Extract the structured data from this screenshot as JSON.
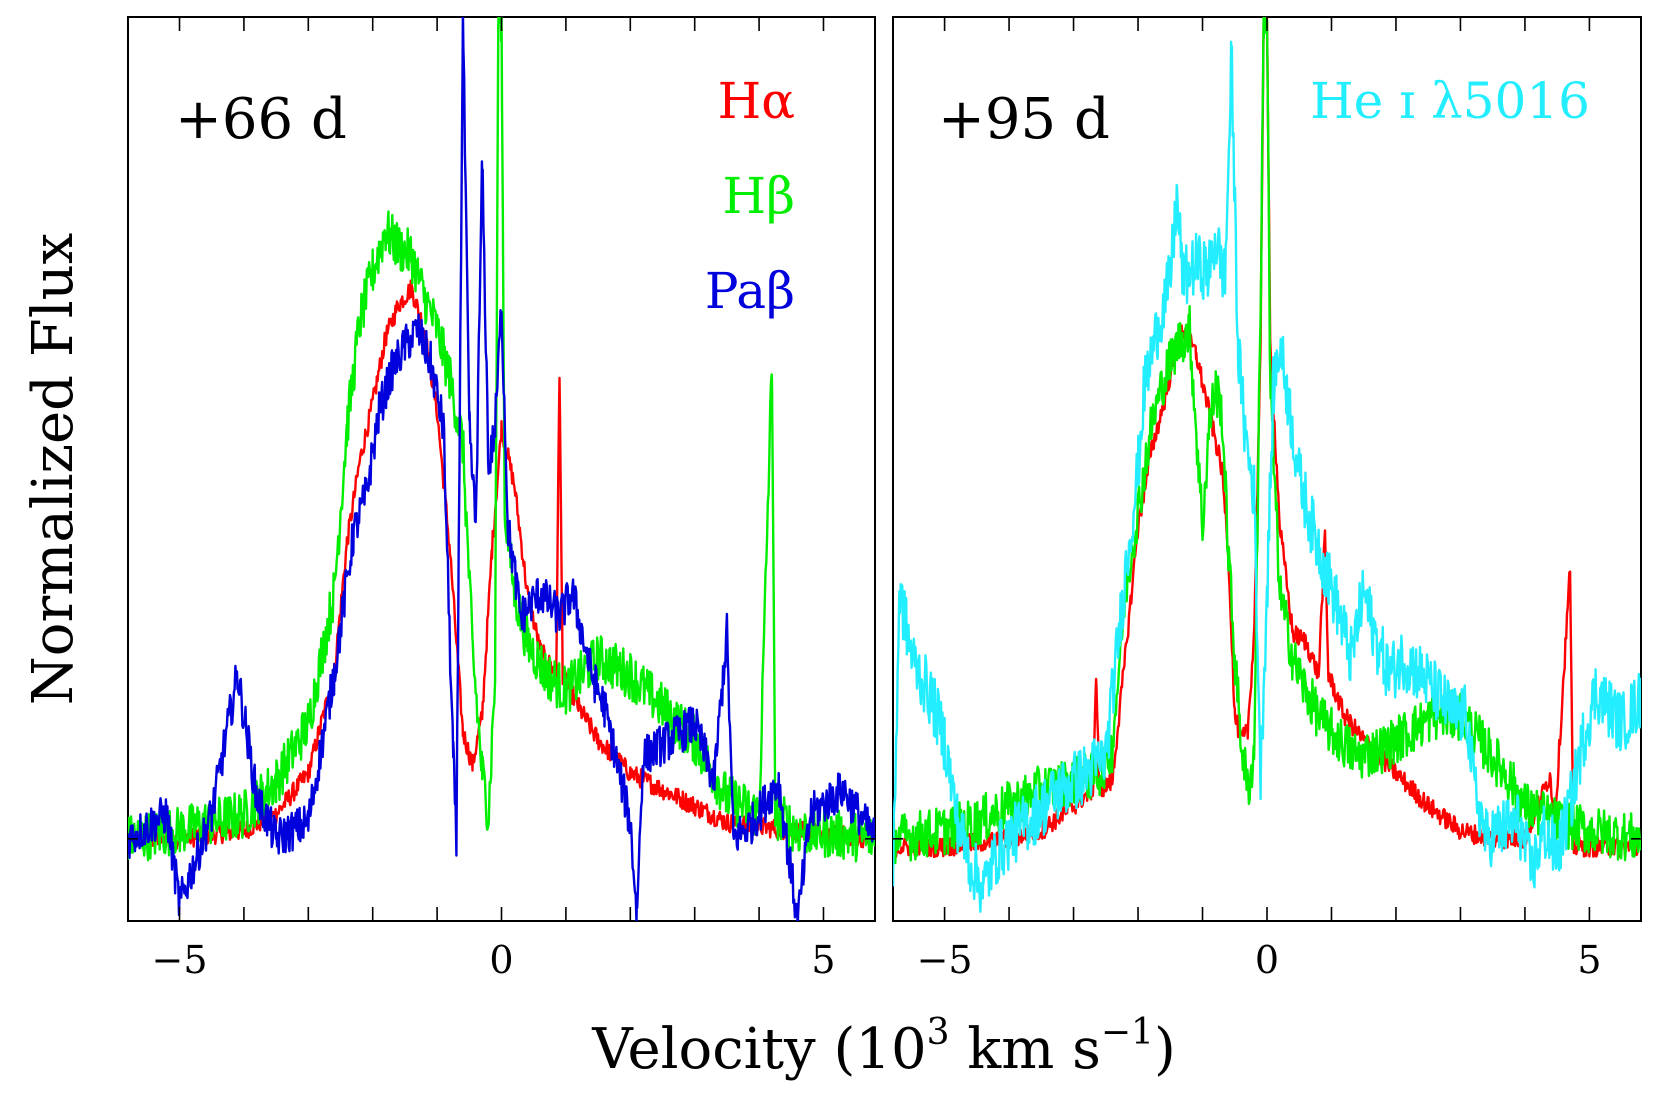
{
  "chart_data": [
    {
      "type": "line",
      "epoch": "+66 d",
      "xlim": [
        -5.8,
        5.8
      ],
      "ylim": [
        -0.1,
        1.0
      ],
      "x_ticks": [
        -5,
        0,
        5
      ],
      "x_tick_labels": [
        "−5",
        "0",
        "5"
      ],
      "grid": false,
      "legend_placement": "top-right",
      "series": [
        {
          "name": "Hα",
          "color": "#ff0000",
          "points": [
            [
              -5.8,
              0.0
            ],
            [
              -5.0,
              0.0
            ],
            [
              -4.0,
              0.01
            ],
            [
              -3.5,
              0.03
            ],
            [
              -3.0,
              0.08
            ],
            [
              -2.6,
              0.2
            ],
            [
              -2.4,
              0.36
            ],
            [
              -2.2,
              0.46
            ],
            [
              -2.0,
              0.53
            ],
            [
              -1.8,
              0.61
            ],
            [
              -1.6,
              0.65
            ],
            [
              -1.4,
              0.67
            ],
            [
              -1.2,
              0.62
            ],
            [
              -1.0,
              0.52
            ],
            [
              -0.8,
              0.35
            ],
            [
              -0.6,
              0.13
            ],
            [
              -0.45,
              0.09
            ],
            [
              -0.3,
              0.15
            ],
            [
              -0.15,
              0.35
            ],
            [
              0.0,
              0.5
            ],
            [
              0.2,
              0.43
            ],
            [
              0.4,
              0.3
            ],
            [
              0.6,
              0.23
            ],
            [
              0.85,
              0.2
            ],
            [
              0.9,
              0.57
            ],
            [
              0.95,
              0.2
            ],
            [
              1.2,
              0.16
            ],
            [
              1.5,
              0.12
            ],
            [
              2.0,
              0.08
            ],
            [
              2.5,
              0.06
            ],
            [
              3.0,
              0.04
            ],
            [
              3.5,
              0.02
            ],
            [
              4.5,
              0.01
            ],
            [
              5.8,
              0.0
            ]
          ]
        },
        {
          "name": "Hβ",
          "color": "#00ee00",
          "points": [
            [
              -5.8,
              0.0
            ],
            [
              -5.0,
              0.01
            ],
            [
              -4.0,
              0.03
            ],
            [
              -3.5,
              0.07
            ],
            [
              -3.0,
              0.14
            ],
            [
              -2.6,
              0.3
            ],
            [
              -2.4,
              0.5
            ],
            [
              -2.2,
              0.63
            ],
            [
              -2.0,
              0.69
            ],
            [
              -1.8,
              0.74
            ],
            [
              -1.6,
              0.72
            ],
            [
              -1.4,
              0.71
            ],
            [
              -1.2,
              0.66
            ],
            [
              -1.0,
              0.62
            ],
            [
              -0.8,
              0.56
            ],
            [
              -0.6,
              0.48
            ],
            [
              -0.45,
              0.23
            ],
            [
              -0.3,
              0.08
            ],
            [
              -0.2,
              0.03
            ],
            [
              -0.1,
              0.2
            ],
            [
              -0.05,
              1.0
            ],
            [
              0.0,
              1.0
            ],
            [
              0.05,
              0.4
            ],
            [
              0.2,
              0.3
            ],
            [
              0.4,
              0.24
            ],
            [
              0.7,
              0.2
            ],
            [
              1.0,
              0.18
            ],
            [
              1.5,
              0.22
            ],
            [
              2.0,
              0.2
            ],
            [
              2.5,
              0.16
            ],
            [
              3.0,
              0.12
            ],
            [
              3.5,
              0.05
            ],
            [
              4.0,
              0.03
            ],
            [
              4.2,
              0.58
            ],
            [
              4.25,
              0.03
            ],
            [
              4.6,
              0.01
            ],
            [
              5.8,
              0.0
            ]
          ]
        },
        {
          "name": "Paβ",
          "color": "#0000dd",
          "points": [
            [
              -5.8,
              0.0
            ],
            [
              -5.2,
              0.03
            ],
            [
              -5.0,
              -0.08
            ],
            [
              -4.5,
              0.03
            ],
            [
              -4.1,
              0.2
            ],
            [
              -3.8,
              0.05
            ],
            [
              -3.5,
              0.0
            ],
            [
              -3.0,
              0.02
            ],
            [
              -2.6,
              0.2
            ],
            [
              -2.3,
              0.37
            ],
            [
              -2.1,
              0.42
            ],
            [
              -1.9,
              0.52
            ],
            [
              -1.7,
              0.57
            ],
            [
              -1.5,
              0.6
            ],
            [
              -1.3,
              0.62
            ],
            [
              -1.1,
              0.58
            ],
            [
              -0.9,
              0.5
            ],
            [
              -0.75,
              0.1
            ],
            [
              -0.7,
              -0.01
            ],
            [
              -0.6,
              1.0
            ],
            [
              -0.5,
              0.5
            ],
            [
              -0.4,
              0.38
            ],
            [
              -0.3,
              0.82
            ],
            [
              -0.2,
              0.45
            ],
            [
              -0.1,
              0.5
            ],
            [
              0.0,
              0.65
            ],
            [
              0.1,
              0.38
            ],
            [
              0.3,
              0.27
            ],
            [
              0.6,
              0.3
            ],
            [
              0.9,
              0.27
            ],
            [
              1.1,
              0.3
            ],
            [
              1.4,
              0.2
            ],
            [
              1.6,
              0.16
            ],
            [
              2.0,
              0.02
            ],
            [
              2.1,
              -0.09
            ],
            [
              2.2,
              0.1
            ],
            [
              2.6,
              0.12
            ],
            [
              3.0,
              0.14
            ],
            [
              3.3,
              0.07
            ],
            [
              3.5,
              0.25
            ],
            [
              3.6,
              0.0
            ],
            [
              3.9,
              0.02
            ],
            [
              4.3,
              0.07
            ],
            [
              4.6,
              -0.1
            ],
            [
              4.8,
              0.03
            ],
            [
              5.3,
              0.06
            ],
            [
              5.8,
              0.0
            ]
          ]
        }
      ]
    },
    {
      "type": "line",
      "epoch": "+95 d",
      "xlim": [
        -5.8,
        5.8
      ],
      "ylim": [
        -0.1,
        1.0
      ],
      "x_ticks": [
        -5,
        0,
        5
      ],
      "x_tick_labels": [
        "−5",
        "0",
        "5"
      ],
      "grid": false,
      "legend_placement": "top-right",
      "series": [
        {
          "name": "",
          "color": "#ff0000",
          "points": [
            [
              -5.8,
              -0.01
            ],
            [
              -5.0,
              -0.01
            ],
            [
              -4.0,
              0.0
            ],
            [
              -3.5,
              0.01
            ],
            [
              -3.0,
              0.04
            ],
            [
              -2.7,
              0.06
            ],
            [
              -2.65,
              0.2
            ],
            [
              -2.6,
              0.06
            ],
            [
              -2.4,
              0.07
            ],
            [
              -2.2,
              0.22
            ],
            [
              -2.0,
              0.38
            ],
            [
              -1.8,
              0.47
            ],
            [
              -1.6,
              0.53
            ],
            [
              -1.4,
              0.6
            ],
            [
              -1.3,
              0.62
            ],
            [
              -1.1,
              0.59
            ],
            [
              -0.9,
              0.52
            ],
            [
              -0.7,
              0.45
            ],
            [
              -0.6,
              0.35
            ],
            [
              -0.5,
              0.15
            ],
            [
              -0.4,
              0.12
            ],
            [
              -0.3,
              0.13
            ],
            [
              -0.2,
              0.25
            ],
            [
              -0.1,
              0.6
            ],
            [
              -0.05,
              1.0
            ],
            [
              0.0,
              1.0
            ],
            [
              0.05,
              0.6
            ],
            [
              0.2,
              0.38
            ],
            [
              0.4,
              0.25
            ],
            [
              0.6,
              0.24
            ],
            [
              0.8,
              0.2
            ],
            [
              0.9,
              0.37
            ],
            [
              0.95,
              0.2
            ],
            [
              1.2,
              0.15
            ],
            [
              1.5,
              0.12
            ],
            [
              2.0,
              0.08
            ],
            [
              2.5,
              0.04
            ],
            [
              3.0,
              0.01
            ],
            [
              3.5,
              0.0
            ],
            [
              4.0,
              0.0
            ],
            [
              4.4,
              0.08
            ],
            [
              4.45,
              0.0
            ],
            [
              4.7,
              0.33
            ],
            [
              4.75,
              -0.01
            ],
            [
              5.0,
              -0.01
            ],
            [
              5.8,
              -0.01
            ]
          ]
        },
        {
          "name": "",
          "color": "#00ee00",
          "points": [
            [
              -5.8,
              0.0
            ],
            [
              -5.0,
              0.01
            ],
            [
              -4.5,
              0.02
            ],
            [
              -4.0,
              0.04
            ],
            [
              -3.5,
              0.06
            ],
            [
              -3.0,
              0.07
            ],
            [
              -2.6,
              0.08
            ],
            [
              -2.4,
              0.11
            ],
            [
              -2.2,
              0.3
            ],
            [
              -2.0,
              0.4
            ],
            [
              -1.8,
              0.5
            ],
            [
              -1.6,
              0.56
            ],
            [
              -1.4,
              0.6
            ],
            [
              -1.2,
              0.62
            ],
            [
              -1.0,
              0.38
            ],
            [
              -0.9,
              0.5
            ],
            [
              -0.8,
              0.55
            ],
            [
              -0.7,
              0.52
            ],
            [
              -0.6,
              0.35
            ],
            [
              -0.5,
              0.22
            ],
            [
              -0.4,
              0.12
            ],
            [
              -0.3,
              0.06
            ],
            [
              -0.2,
              0.1
            ],
            [
              -0.1,
              0.65
            ],
            [
              -0.05,
              1.0
            ],
            [
              0.0,
              1.0
            ],
            [
              0.05,
              0.55
            ],
            [
              0.2,
              0.3
            ],
            [
              0.4,
              0.22
            ],
            [
              0.6,
              0.18
            ],
            [
              0.8,
              0.15
            ],
            [
              1.0,
              0.13
            ],
            [
              1.4,
              0.1
            ],
            [
              1.8,
              0.11
            ],
            [
              2.2,
              0.13
            ],
            [
              2.6,
              0.15
            ],
            [
              3.0,
              0.15
            ],
            [
              3.3,
              0.12
            ],
            [
              3.7,
              0.08
            ],
            [
              4.0,
              0.04
            ],
            [
              4.5,
              0.02
            ],
            [
              5.0,
              0.01
            ],
            [
              5.8,
              0.0
            ]
          ]
        },
        {
          "name": "He ɪ λ5016",
          "color": "#22eeff",
          "points": [
            [
              -5.8,
              -0.05
            ],
            [
              -5.7,
              0.3
            ],
            [
              -5.5,
              0.22
            ],
            [
              -5.2,
              0.17
            ],
            [
              -5.0,
              0.12
            ],
            [
              -4.8,
              0.02
            ],
            [
              -4.6,
              -0.03
            ],
            [
              -4.4,
              -0.06
            ],
            [
              -4.2,
              -0.02
            ],
            [
              -4.0,
              0.0
            ],
            [
              -3.6,
              0.03
            ],
            [
              -3.2,
              0.06
            ],
            [
              -2.8,
              0.08
            ],
            [
              -2.5,
              0.1
            ],
            [
              -2.2,
              0.32
            ],
            [
              -2.0,
              0.45
            ],
            [
              -1.9,
              0.55
            ],
            [
              -1.7,
              0.62
            ],
            [
              -1.5,
              0.68
            ],
            [
              -1.4,
              0.78
            ],
            [
              -1.3,
              0.68
            ],
            [
              -1.1,
              0.7
            ],
            [
              -0.9,
              0.69
            ],
            [
              -0.8,
              0.73
            ],
            [
              -0.65,
              0.68
            ],
            [
              -0.55,
              0.95
            ],
            [
              -0.45,
              0.6
            ],
            [
              -0.35,
              0.5
            ],
            [
              -0.2,
              0.42
            ],
            [
              -0.1,
              0.08
            ],
            [
              0.0,
              0.3
            ],
            [
              0.1,
              0.55
            ],
            [
              0.2,
              0.6
            ],
            [
              0.3,
              0.55
            ],
            [
              0.5,
              0.44
            ],
            [
              0.7,
              0.38
            ],
            [
              0.9,
              0.33
            ],
            [
              1.1,
              0.28
            ],
            [
              1.3,
              0.22
            ],
            [
              1.5,
              0.3
            ],
            [
              1.7,
              0.24
            ],
            [
              1.9,
              0.2
            ],
            [
              2.1,
              0.22
            ],
            [
              2.4,
              0.2
            ],
            [
              2.7,
              0.17
            ],
            [
              2.9,
              0.15
            ],
            [
              3.1,
              0.15
            ],
            [
              3.2,
              0.07
            ],
            [
              3.4,
              0.0
            ],
            [
              3.6,
              0.01
            ],
            [
              3.9,
              0.02
            ],
            [
              4.1,
              -0.04
            ],
            [
              4.3,
              0.01
            ],
            [
              4.5,
              -0.02
            ],
            [
              4.7,
              0.04
            ],
            [
              4.9,
              0.12
            ],
            [
              5.1,
              0.18
            ],
            [
              5.3,
              0.16
            ],
            [
              5.5,
              0.14
            ],
            [
              5.8,
              0.17
            ]
          ]
        }
      ]
    }
  ],
  "labels": {
    "ylabel": "Normalized Flux",
    "xlabel_prefix": "Velocity (10",
    "xlabel_exp": "3",
    "xlabel_unit": " km s",
    "xlabel_unit_exp": "−1",
    "xlabel_suffix": ")"
  }
}
